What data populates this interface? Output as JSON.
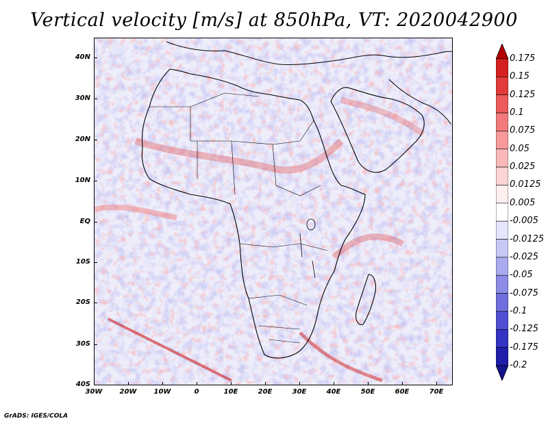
{
  "title": "Vertical velocity [m/s] at 850hPa, VT: 2020042900",
  "footer": "GrADS: IGES/COLA",
  "map": {
    "lat_range": [
      -40,
      45
    ],
    "lon_range": [
      -30,
      75
    ],
    "lat_ticks": [
      "40N",
      "30N",
      "20N",
      "10N",
      "EQ",
      "10S",
      "20S",
      "30S",
      "40S"
    ],
    "lon_ticks": [
      "30W",
      "20W",
      "10W",
      "0",
      "10E",
      "20E",
      "30E",
      "40E",
      "50E",
      "60E",
      "70E"
    ],
    "regions": [
      "Africa",
      "Arabian Peninsula",
      "Madagascar",
      "Mediterranean",
      "Atlantic Ocean",
      "Indian Ocean"
    ]
  },
  "legend": {
    "labels": [
      "0.175",
      "0.15",
      "0.125",
      "0.1",
      "0.075",
      "0.05",
      "0.025",
      "0.0125",
      "0.005",
      "-0.005",
      "-0.0125",
      "-0.025",
      "-0.05",
      "-0.075",
      "-0.1",
      "-0.125",
      "-0.175",
      "-0.2"
    ],
    "colors": [
      "#b40000",
      "#d62020",
      "#e33a3a",
      "#ed5a5a",
      "#f37a7a",
      "#f79a9a",
      "#fab8b8",
      "#fcd4d4",
      "#fff0f0",
      "#ffffff",
      "#e6e6ff",
      "#c8c8f5",
      "#aaaaee",
      "#8c8ce6",
      "#6e6edd",
      "#5050d2",
      "#3232c3",
      "#1e1eaa",
      "#14148c"
    ],
    "top_arrow_color": "#b40000",
    "bottom_arrow_color": "#14148c"
  }
}
